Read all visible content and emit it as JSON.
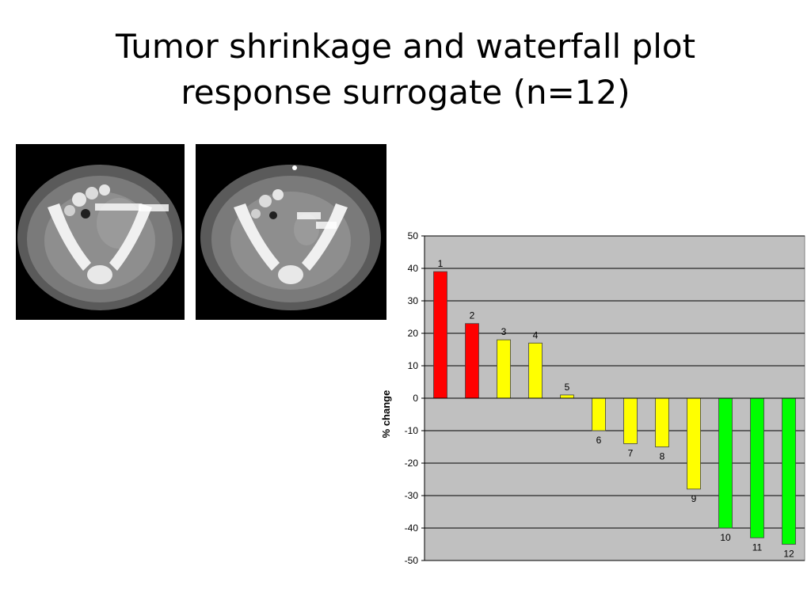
{
  "title": {
    "line1": "Tumor shrinkage and waterfall plot",
    "line2": "response surrogate (n=12)"
  },
  "images": {
    "left": "ct-scan-before",
    "right": "ct-scan-after"
  },
  "chart_data": {
    "type": "bar",
    "categories": [
      "1",
      "2",
      "3",
      "4",
      "5",
      "6",
      "7",
      "8",
      "9",
      "10",
      "11",
      "12"
    ],
    "values": [
      39,
      23,
      18,
      17,
      1,
      -10,
      -14,
      -15,
      -28,
      -40,
      -43,
      -45
    ],
    "bar_colors": [
      "#ff0000",
      "#ff0000",
      "#ffff00",
      "#ffff00",
      "#ffff00",
      "#ffff00",
      "#ffff00",
      "#ffff00",
      "#ffff00",
      "#00ff00",
      "#00ff00",
      "#00ff00"
    ],
    "ylabel": "% change",
    "ylim": [
      -50,
      50
    ],
    "yticks": [
      50,
      40,
      30,
      20,
      10,
      0,
      -10,
      -20,
      -30,
      -40,
      -50
    ],
    "grid": true,
    "plot_background": "#c0c0c0"
  }
}
